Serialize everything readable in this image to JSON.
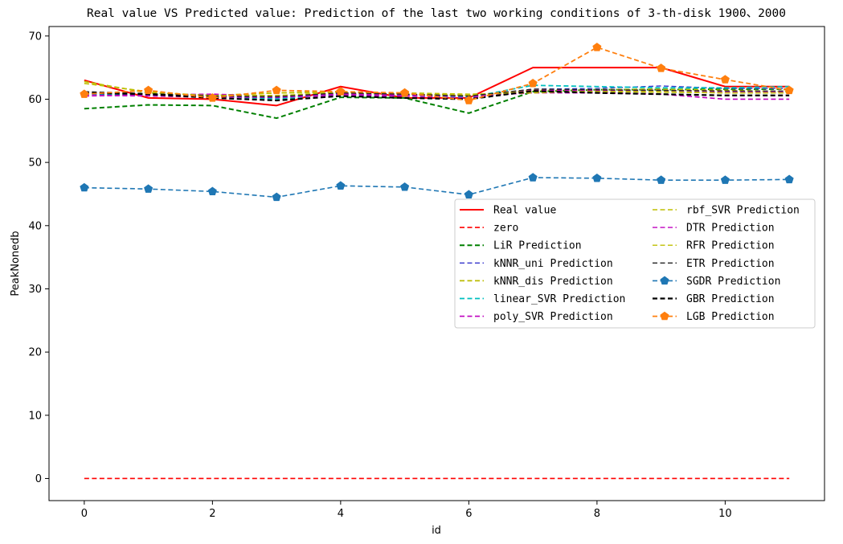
{
  "chart_data": {
    "type": "line",
    "title": "Real value VS Predicted value: Prediction of the last two working conditions of 3-th-disk 1900、2000",
    "xlabel": "id",
    "ylabel": "PeakNonedb",
    "xlim": [
      -0.55,
      11.55
    ],
    "ylim": [
      -3.5,
      71.5
    ],
    "xticks": [
      0,
      2,
      4,
      6,
      8,
      10
    ],
    "yticks": [
      0,
      10,
      20,
      30,
      40,
      50,
      60,
      70
    ],
    "grid": false,
    "legend_location": "center-right",
    "legend_columns": 2,
    "x": [
      0,
      1,
      2,
      3,
      4,
      5,
      6,
      7,
      8,
      9,
      10,
      11
    ],
    "series": [
      {
        "name": "Real value",
        "color": "#ff0000",
        "dash": "solid",
        "width": 2,
        "marker": null,
        "values": [
          63,
          60.2,
          60,
          59,
          62,
          60.2,
          60.2,
          65,
          65,
          65,
          62,
          62
        ]
      },
      {
        "name": "zero",
        "color": "#ff0000",
        "dash": "dashed",
        "width": 1.6,
        "marker": null,
        "values": [
          0,
          0,
          0,
          0,
          0,
          0,
          0,
          0,
          0,
          0,
          0,
          0
        ]
      },
      {
        "name": "LiR Prediction",
        "color": "#008000",
        "dash": "dashed",
        "width": 2,
        "marker": null,
        "values": [
          58.5,
          59.1,
          59,
          57,
          60.3,
          60.2,
          57.8,
          61.2,
          61.5,
          61.5,
          61.6,
          61.6
        ]
      },
      {
        "name": "kNNR_uni Prediction",
        "color": "#3333cc",
        "dash": "dashed",
        "width": 1.3,
        "marker": null,
        "values": [
          60.8,
          60.6,
          60.4,
          60.2,
          60.8,
          60.6,
          60.4,
          61.6,
          61.7,
          62.1,
          61.7,
          61.7
        ]
      },
      {
        "name": "kNNR_dis Prediction",
        "color": "#bbbb00",
        "dash": "dashed",
        "width": 1.8,
        "marker": null,
        "values": [
          62.8,
          61.0,
          60.6,
          61.0,
          61.2,
          60.8,
          60.6,
          61.4,
          61.5,
          61.6,
          61.4,
          61.2
        ]
      },
      {
        "name": "linear_SVR Prediction",
        "color": "#00bfbf",
        "dash": "dashed",
        "width": 1.8,
        "marker": null,
        "values": [
          60.9,
          60.7,
          60.5,
          60.0,
          60.9,
          60.7,
          60.3,
          62.2,
          62.0,
          61.8,
          61.8,
          62.0
        ]
      },
      {
        "name": "poly_SVR Prediction",
        "color": "#bf00bf",
        "dash": "dashed",
        "width": 1.6,
        "marker": null,
        "values": [
          60.5,
          60.7,
          60.8,
          60.5,
          60.8,
          60.7,
          60.5,
          61.0,
          61.0,
          60.8,
          60.0,
          60.0
        ]
      },
      {
        "name": "rbf_SVR Prediction",
        "color": "#bfbf00",
        "dash": "dashed",
        "width": 1.6,
        "marker": null,
        "values": [
          62.5,
          61.2,
          60.5,
          61.0,
          61.0,
          61.0,
          60.8,
          61.0,
          61.3,
          61.2,
          61.0,
          61.0
        ]
      },
      {
        "name": "DTR Prediction",
        "color": "#bf00bf",
        "dash": "dashed",
        "width": 1.4,
        "marker": null,
        "values": [
          60.6,
          60.5,
          60.3,
          60.3,
          60.6,
          60.5,
          60.2,
          61.4,
          61.4,
          61.4,
          61.2,
          61.2
        ]
      },
      {
        "name": "RFR Prediction",
        "color": "#bfbf00",
        "dash": "dashed",
        "width": 1.4,
        "marker": null,
        "values": [
          61.0,
          60.8,
          60.6,
          60.6,
          61.0,
          60.8,
          60.6,
          61.2,
          61.2,
          61.1,
          61.0,
          61.0
        ]
      },
      {
        "name": "ETR Prediction",
        "color": "#222222",
        "dash": "dashed",
        "width": 1.3,
        "marker": null,
        "values": [
          61.2,
          60.9,
          60.5,
          60.4,
          61.0,
          60.8,
          60.5,
          61.6,
          61.5,
          61.4,
          61.3,
          61.3
        ]
      },
      {
        "name": "SGDR Prediction",
        "color": "#1f77b4",
        "dash": "dashed",
        "width": 1.6,
        "marker": "pentagon",
        "values": [
          46.0,
          45.8,
          45.4,
          44.5,
          46.3,
          46.1,
          44.9,
          47.6,
          47.5,
          47.2,
          47.2,
          47.3
        ]
      },
      {
        "name": "GBR Prediction",
        "color": "#000000",
        "dash": "dashed",
        "width": 2.2,
        "marker": null,
        "values": [
          61.0,
          60.8,
          60.2,
          59.8,
          60.5,
          60.2,
          60.0,
          61.3,
          61.0,
          60.8,
          60.6,
          60.6
        ]
      },
      {
        "name": "LGB Prediction",
        "color": "#ff7f0e",
        "dash": "dashed",
        "width": 1.8,
        "marker": "pentagon",
        "values": [
          60.8,
          61.4,
          60.2,
          61.4,
          61.2,
          61.0,
          59.8,
          62.5,
          68.2,
          64.9,
          63.1,
          61.4
        ]
      }
    ]
  }
}
